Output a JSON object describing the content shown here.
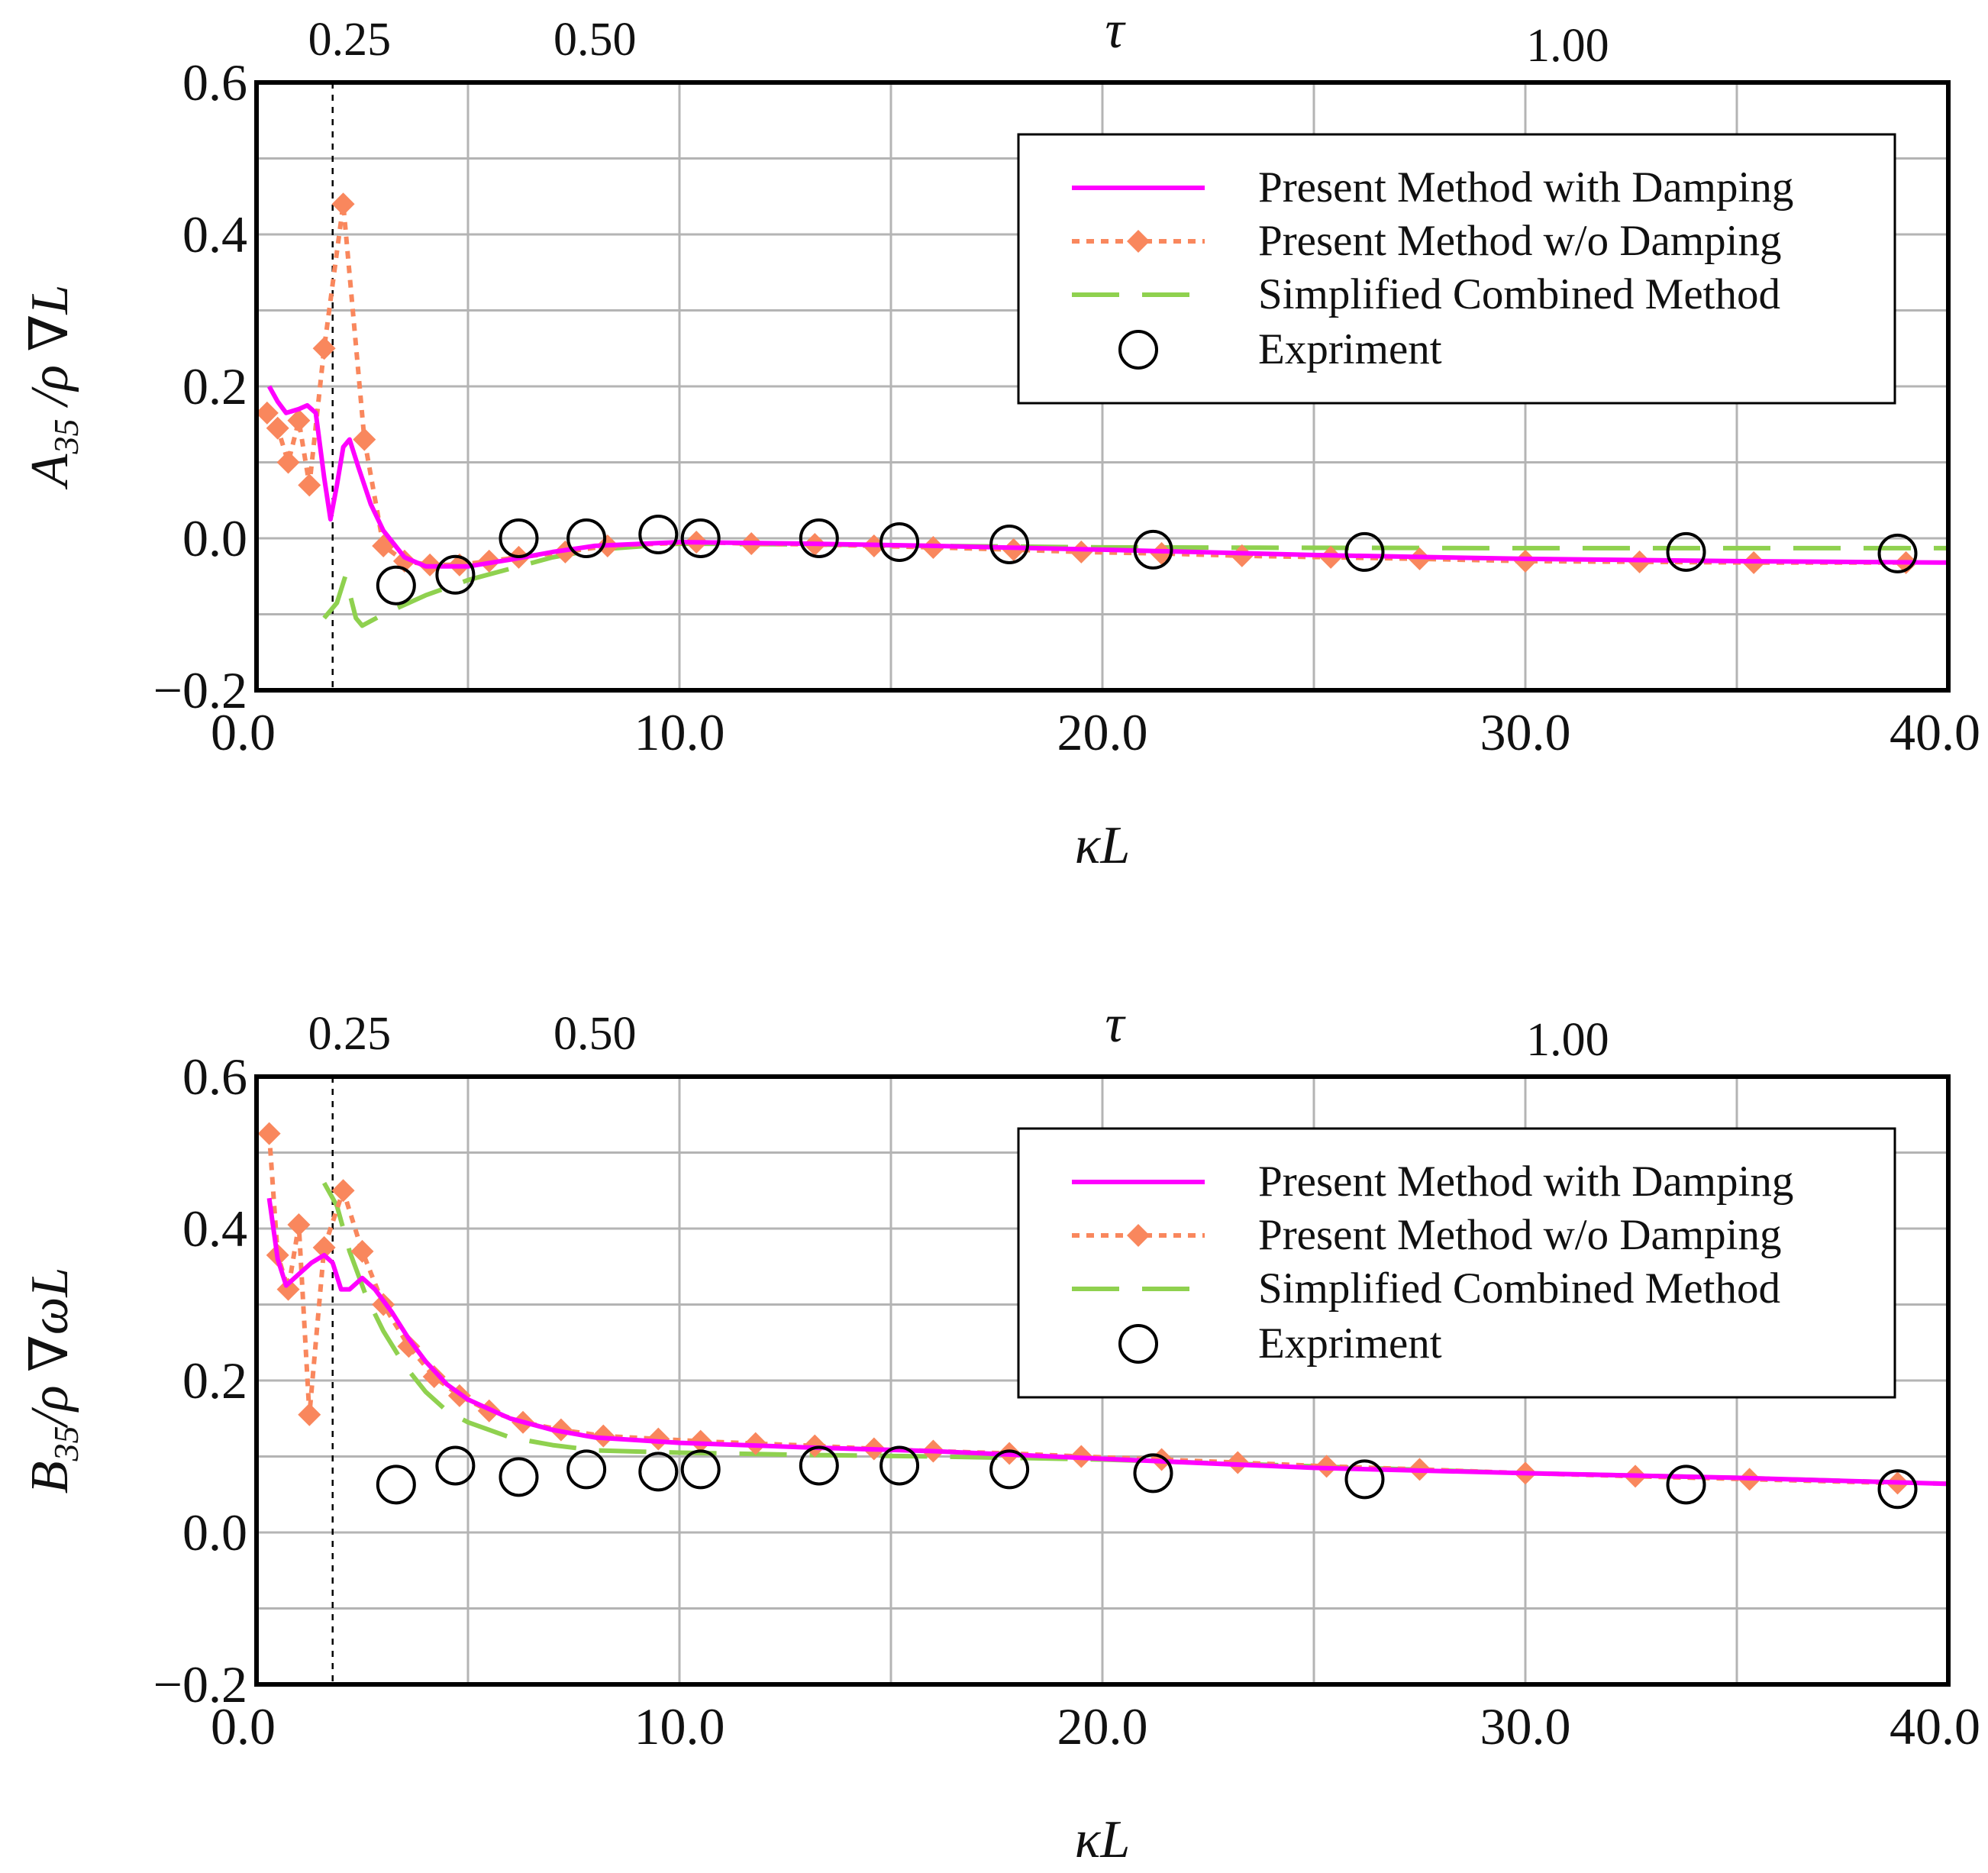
{
  "figure": {
    "colors": {
      "with_damping": "#ff00ff",
      "without_damping": "#f9875d",
      "simplified": "#8fd14f",
      "experiment": "#000000",
      "grid": "#b4b4b4"
    },
    "legend": {
      "with_damping": "Present Method with Damping",
      "without_damping": "Present Method w/o Damping",
      "simplified": "Simplified Combined Method",
      "experiment": "Expriment"
    }
  },
  "chart_data": [
    {
      "type": "line",
      "panel": "top",
      "title": "",
      "xlabel": "κL",
      "ylabel": "A35 /ρ ∇L",
      "ylabel_parts": {
        "main": "A",
        "sub": "35",
        "rest": " /ρ ∇L"
      },
      "xlim": [
        0,
        40
      ],
      "ylim": [
        -0.2,
        0.6
      ],
      "xticks": [
        {
          "v": 0,
          "label": "0.0"
        },
        {
          "v": 10,
          "label": "10.0"
        },
        {
          "v": 20,
          "label": "20.0"
        },
        {
          "v": 30,
          "label": "30.0"
        },
        {
          "v": 40,
          "label": "40.0"
        }
      ],
      "yticks": [
        {
          "v": 0.6,
          "label": "0.6"
        },
        {
          "v": 0.4,
          "label": "0.4"
        },
        {
          "v": 0.2,
          "label": "0.2"
        },
        {
          "v": 0.0,
          "label": "0.0"
        },
        {
          "v": -0.2,
          "label": "−0.2"
        }
      ],
      "top_axis": {
        "label": "τ",
        "ticks": [
          {
            "kL": 2.2,
            "label": "0.25"
          },
          {
            "kL": 8.0,
            "label": "0.50"
          },
          {
            "kL": 31.0,
            "label": "1.00"
          }
        ]
      },
      "ref_line_x": 1.8,
      "legend_position": "top-right",
      "series": [
        {
          "name": "Present Method with Damping",
          "style": "solid",
          "points": [
            [
              0.3,
              0.2
            ],
            [
              0.5,
              0.18
            ],
            [
              0.7,
              0.165
            ],
            [
              1.0,
              0.17
            ],
            [
              1.2,
              0.175
            ],
            [
              1.4,
              0.165
            ],
            [
              1.6,
              0.08
            ],
            [
              1.75,
              0.025
            ],
            [
              1.9,
              0.07
            ],
            [
              2.05,
              0.12
            ],
            [
              2.2,
              0.13
            ],
            [
              2.4,
              0.095
            ],
            [
              2.7,
              0.045
            ],
            [
              3.0,
              0.01
            ],
            [
              3.5,
              -0.025
            ],
            [
              4.0,
              -0.037
            ],
            [
              5.0,
              -0.037
            ],
            [
              6.0,
              -0.028
            ],
            [
              7.0,
              -0.018
            ],
            [
              8.0,
              -0.01
            ],
            [
              10.0,
              -0.005
            ],
            [
              13.0,
              -0.007
            ],
            [
              16.0,
              -0.01
            ],
            [
              20.0,
              -0.015
            ],
            [
              25.0,
              -0.022
            ],
            [
              30.0,
              -0.027
            ],
            [
              35.0,
              -0.03
            ],
            [
              40.0,
              -0.032
            ]
          ]
        },
        {
          "name": "Present Method w/o Damping",
          "style": "dotted-diamond",
          "points": [
            [
              0.25,
              0.165
            ],
            [
              0.5,
              0.145
            ],
            [
              0.75,
              0.1
            ],
            [
              1.0,
              0.155
            ],
            [
              1.25,
              0.07
            ],
            [
              1.6,
              0.25
            ],
            [
              2.05,
              0.44
            ],
            [
              2.55,
              0.13
            ],
            [
              3.0,
              -0.01
            ],
            [
              3.5,
              -0.03
            ],
            [
              4.1,
              -0.035
            ],
            [
              4.8,
              -0.035
            ],
            [
              5.5,
              -0.03
            ],
            [
              6.2,
              -0.025
            ],
            [
              7.3,
              -0.018
            ],
            [
              8.3,
              -0.01
            ],
            [
              10.4,
              -0.005
            ],
            [
              11.7,
              -0.007
            ],
            [
              13.2,
              -0.008
            ],
            [
              14.6,
              -0.01
            ],
            [
              16.0,
              -0.012
            ],
            [
              17.9,
              -0.015
            ],
            [
              19.5,
              -0.018
            ],
            [
              21.4,
              -0.02
            ],
            [
              23.3,
              -0.023
            ],
            [
              25.4,
              -0.025
            ],
            [
              27.5,
              -0.027
            ],
            [
              30.0,
              -0.03
            ],
            [
              32.7,
              -0.031
            ],
            [
              35.4,
              -0.032
            ],
            [
              39.0,
              -0.032
            ]
          ]
        },
        {
          "name": "Simplified Combined Method",
          "style": "dashed",
          "points": [
            [
              1.6,
              -0.105
            ],
            [
              1.9,
              -0.085
            ],
            [
              2.1,
              -0.05
            ],
            [
              2.35,
              -0.105
            ],
            [
              2.5,
              -0.115
            ],
            [
              3.0,
              -0.1
            ],
            [
              4.0,
              -0.075
            ],
            [
              5.0,
              -0.055
            ],
            [
              6.0,
              -0.04
            ],
            [
              7.0,
              -0.025
            ],
            [
              8.0,
              -0.015
            ],
            [
              10.0,
              -0.007
            ],
            [
              13.0,
              -0.008
            ],
            [
              16.0,
              -0.01
            ],
            [
              20.0,
              -0.012
            ],
            [
              30.0,
              -0.013
            ],
            [
              40.0,
              -0.013
            ]
          ]
        },
        {
          "name": "Expriment",
          "style": "circle",
          "points": [
            [
              3.3,
              -0.062
            ],
            [
              4.7,
              -0.048
            ],
            [
              6.2,
              0.0
            ],
            [
              7.8,
              0.0
            ],
            [
              9.5,
              0.005
            ],
            [
              10.5,
              0.0
            ],
            [
              13.3,
              0.0
            ],
            [
              15.2,
              -0.005
            ],
            [
              17.8,
              -0.008
            ],
            [
              21.2,
              -0.015
            ],
            [
              26.2,
              -0.018
            ],
            [
              33.8,
              -0.018
            ],
            [
              38.8,
              -0.02
            ]
          ]
        }
      ]
    },
    {
      "type": "line",
      "panel": "bottom",
      "title": "",
      "xlabel": "κL",
      "ylabel": "B35/ρ ∇ωL",
      "ylabel_parts": {
        "main": "B",
        "sub": "35",
        "rest": "/ρ ∇ωL"
      },
      "xlim": [
        0,
        40
      ],
      "ylim": [
        -0.2,
        0.6
      ],
      "xticks": [
        {
          "v": 0,
          "label": "0.0"
        },
        {
          "v": 10,
          "label": "10.0"
        },
        {
          "v": 20,
          "label": "20.0"
        },
        {
          "v": 30,
          "label": "30.0"
        },
        {
          "v": 40,
          "label": "40.0"
        }
      ],
      "yticks": [
        {
          "v": 0.6,
          "label": "0.6"
        },
        {
          "v": 0.4,
          "label": "0.4"
        },
        {
          "v": 0.2,
          "label": "0.2"
        },
        {
          "v": 0.0,
          "label": "0.0"
        },
        {
          "v": -0.2,
          "label": "−0.2"
        }
      ],
      "top_axis": {
        "label": "τ",
        "ticks": [
          {
            "kL": 2.2,
            "label": "0.25"
          },
          {
            "kL": 8.0,
            "label": "0.50"
          },
          {
            "kL": 31.0,
            "label": "1.00"
          }
        ]
      },
      "ref_line_x": 1.8,
      "legend_position": "top-right",
      "series": [
        {
          "name": "Present Method with Damping",
          "style": "solid",
          "points": [
            [
              0.3,
              0.44
            ],
            [
              0.5,
              0.36
            ],
            [
              0.7,
              0.325
            ],
            [
              1.0,
              0.34
            ],
            [
              1.3,
              0.355
            ],
            [
              1.6,
              0.365
            ],
            [
              1.8,
              0.355
            ],
            [
              2.0,
              0.32
            ],
            [
              2.2,
              0.32
            ],
            [
              2.5,
              0.335
            ],
            [
              2.8,
              0.32
            ],
            [
              3.2,
              0.29
            ],
            [
              3.6,
              0.255
            ],
            [
              4.0,
              0.225
            ],
            [
              4.5,
              0.195
            ],
            [
              5.0,
              0.175
            ],
            [
              6.0,
              0.15
            ],
            [
              7.0,
              0.135
            ],
            [
              8.0,
              0.125
            ],
            [
              10.0,
              0.118
            ],
            [
              13.0,
              0.112
            ],
            [
              16.0,
              0.107
            ],
            [
              20.0,
              0.097
            ],
            [
              25.0,
              0.085
            ],
            [
              30.0,
              0.078
            ],
            [
              35.0,
              0.072
            ],
            [
              40.0,
              0.064
            ]
          ]
        },
        {
          "name": "Present Method w/o Damping",
          "style": "dotted-diamond",
          "points": [
            [
              0.3,
              0.525
            ],
            [
              0.5,
              0.365
            ],
            [
              0.75,
              0.32
            ],
            [
              1.0,
              0.405
            ],
            [
              1.25,
              0.155
            ],
            [
              1.6,
              0.375
            ],
            [
              2.05,
              0.45
            ],
            [
              2.5,
              0.37
            ],
            [
              3.0,
              0.3
            ],
            [
              3.6,
              0.245
            ],
            [
              4.2,
              0.205
            ],
            [
              4.8,
              0.18
            ],
            [
              5.5,
              0.16
            ],
            [
              6.3,
              0.145
            ],
            [
              7.2,
              0.135
            ],
            [
              8.2,
              0.127
            ],
            [
              9.5,
              0.123
            ],
            [
              10.5,
              0.12
            ],
            [
              11.8,
              0.117
            ],
            [
              13.2,
              0.114
            ],
            [
              14.6,
              0.11
            ],
            [
              16.0,
              0.107
            ],
            [
              17.8,
              0.104
            ],
            [
              19.5,
              0.1
            ],
            [
              21.4,
              0.096
            ],
            [
              23.2,
              0.092
            ],
            [
              25.3,
              0.087
            ],
            [
              27.5,
              0.083
            ],
            [
              30.0,
              0.078
            ],
            [
              32.6,
              0.074
            ],
            [
              35.3,
              0.07
            ],
            [
              38.8,
              0.065
            ]
          ]
        },
        {
          "name": "Simplified Combined Method",
          "style": "dashed",
          "points": [
            [
              1.6,
              0.46
            ],
            [
              1.9,
              0.43
            ],
            [
              2.2,
              0.37
            ],
            [
              2.6,
              0.31
            ],
            [
              3.0,
              0.265
            ],
            [
              3.5,
              0.22
            ],
            [
              4.0,
              0.185
            ],
            [
              4.5,
              0.16
            ],
            [
              5.0,
              0.145
            ],
            [
              6.0,
              0.125
            ],
            [
              7.0,
              0.115
            ],
            [
              8.0,
              0.108
            ],
            [
              10.0,
              0.105
            ],
            [
              13.0,
              0.102
            ],
            [
              16.0,
              0.1
            ],
            [
              20.0,
              0.096
            ],
            [
              25.0,
              0.087
            ],
            [
              30.0,
              0.078
            ],
            [
              35.0,
              0.072
            ],
            [
              40.0,
              0.064
            ]
          ]
        },
        {
          "name": "Expriment",
          "style": "circle",
          "points": [
            [
              3.3,
              0.063
            ],
            [
              4.7,
              0.088
            ],
            [
              6.2,
              0.073
            ],
            [
              7.8,
              0.083
            ],
            [
              9.5,
              0.08
            ],
            [
              10.5,
              0.083
            ],
            [
              13.3,
              0.088
            ],
            [
              15.2,
              0.088
            ],
            [
              17.8,
              0.083
            ],
            [
              21.2,
              0.078
            ],
            [
              26.2,
              0.07
            ],
            [
              33.8,
              0.063
            ],
            [
              38.8,
              0.057
            ]
          ]
        }
      ]
    }
  ]
}
